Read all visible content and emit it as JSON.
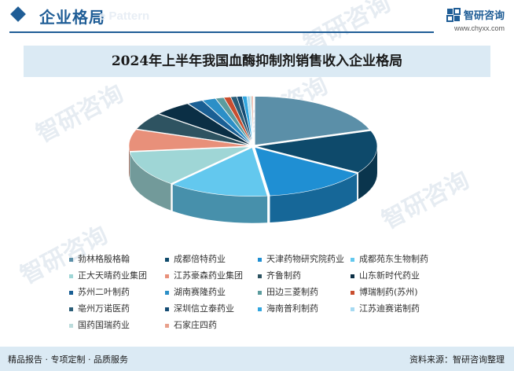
{
  "header": {
    "title": "企业格局",
    "ghost_text": "e Pattern"
  },
  "brand": {
    "name": "智研咨询",
    "url": "www.chyxx.com",
    "logo_icon": "zhiyan-logo-icon"
  },
  "watermark": "智研咨询",
  "footer": {
    "left": "精品报告 · 专项定制 · 品质服务",
    "right": "资料来源：智研咨询整理"
  },
  "chart_data": {
    "type": "pie",
    "title": "2024年上半年我国血酶抑制剂销售收入企业格局",
    "style": "3d-exploded",
    "slices": [
      {
        "name": "勃林格殷格翰",
        "value": 19.8,
        "color": "#5b8fa8"
      },
      {
        "name": "成都倍特药业",
        "value": 14.2,
        "color": "#0e4a6b"
      },
      {
        "name": "天津药物研究院药业",
        "value": 14.0,
        "color": "#1f8fd3"
      },
      {
        "name": "成都苑东生物制药",
        "value": 13.4,
        "color": "#63c8ee"
      },
      {
        "name": "正大天晴药业集团",
        "value": 11.9,
        "color": "#9fd6d6"
      },
      {
        "name": "江苏豪森药业集团",
        "value": 7.2,
        "color": "#e8907a"
      },
      {
        "name": "齐鲁制药",
        "value": 5.7,
        "color": "#2e5361"
      },
      {
        "name": "山东新时代药业",
        "value": 5.0,
        "color": "#0b2f45"
      },
      {
        "name": "苏州二叶制药",
        "value": 2.1,
        "color": "#1a5f94"
      },
      {
        "name": "湖南赛隆药业",
        "value": 1.8,
        "color": "#2b8fc7"
      },
      {
        "name": "田边三菱制药",
        "value": 1.1,
        "color": "#5c9c9e"
      },
      {
        "name": "博瑞制药(苏州)",
        "value": 0.9,
        "color": "#c94e2f"
      },
      {
        "name": "亳州万诺医药",
        "value": 0.8,
        "color": "#2b5e78"
      },
      {
        "name": "深圳信立泰药业",
        "value": 0.7,
        "color": "#144b73"
      },
      {
        "name": "海南普利制药",
        "value": 0.6,
        "color": "#30a6e0"
      },
      {
        "name": "江苏迪赛诺制药",
        "value": 0.4,
        "color": "#a6daf2"
      },
      {
        "name": "国药国瑞药业",
        "value": 0.2,
        "color": "#bcdcdc"
      },
      {
        "name": "石家庄四药",
        "value": 0.2,
        "color": "#e8a08c"
      }
    ]
  }
}
